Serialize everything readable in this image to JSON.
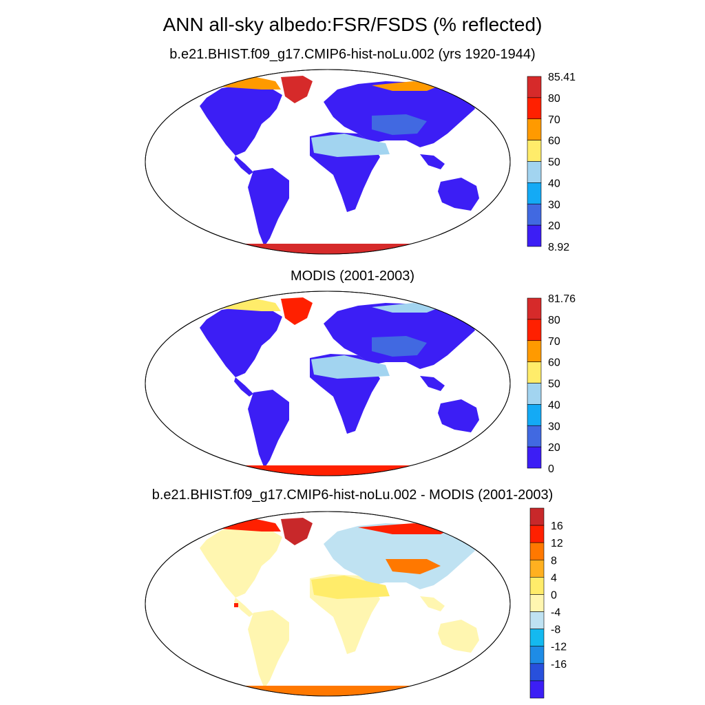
{
  "figure": {
    "title": "ANN all-sky albedo:FSR/FSDS (% reflected)"
  },
  "panels": [
    {
      "title": "b.e21.BHIST.f09_g17.CMIP6-hist-noLu.002 (yrs 1920-1944)",
      "colorbar": {
        "labels": [
          "85.41",
          "80",
          "70",
          "60",
          "50",
          "40",
          "30",
          "20",
          "8.92"
        ],
        "colors": [
          "#d62a2a",
          "#ff2000",
          "#ff9a00",
          "#ffec6a",
          "#a2d4f0",
          "#14aaf5",
          "#4169e1",
          "#3c1ef5"
        ]
      }
    },
    {
      "title": "MODIS (2001-2003)",
      "colorbar": {
        "labels": [
          "81.76",
          "80",
          "70",
          "60",
          "50",
          "40",
          "30",
          "20",
          "0"
        ],
        "colors": [
          "#d62a2a",
          "#ff2000",
          "#ff9a00",
          "#ffec6a",
          "#a2d4f0",
          "#14aaf5",
          "#4169e1",
          "#3c1ef5"
        ]
      }
    },
    {
      "title": "b.e21.BHIST.f09_g17.CMIP6-hist-noLu.002 - MODIS (2001-2003)",
      "colorbar": {
        "labels": [
          "16",
          "12",
          "8",
          "4",
          "0",
          "-4",
          "-8",
          "-12",
          "-16"
        ],
        "colors": [
          "#c8282a",
          "#ff2000",
          "#ff7800",
          "#ffb020",
          "#ffec6a",
          "#fff6b0",
          "#bfe2f2",
          "#14b9f0",
          "#1e8ce6",
          "#2850dc",
          "#3c1ef5"
        ]
      }
    }
  ]
}
